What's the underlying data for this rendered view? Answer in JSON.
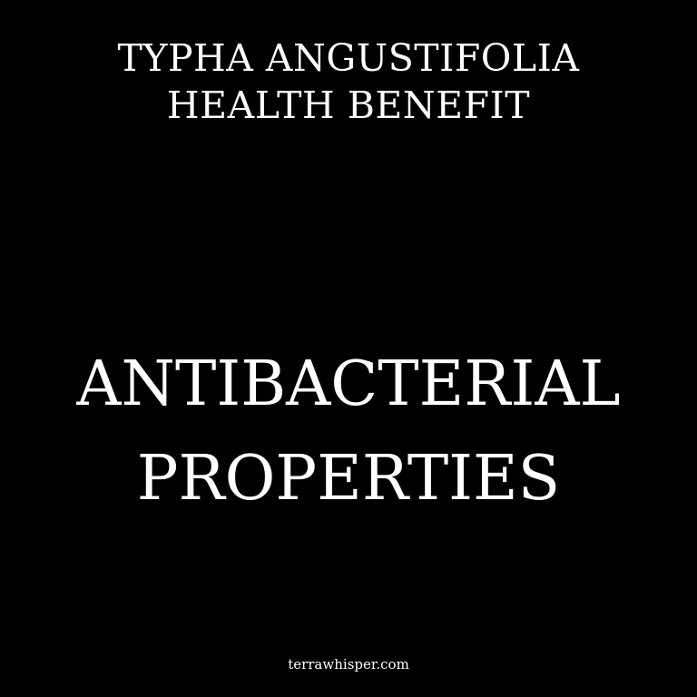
{
  "header": {
    "line1": "TYPHA ANGUSTIFOLIA",
    "line2": "HEALTH BENEFIT"
  },
  "main": {
    "line1": "ANTIBACTERIAL",
    "line2": "PROPERTIES"
  },
  "footer": {
    "site": "terrawhisper.com"
  },
  "colors": {
    "background": "#000000",
    "text": "#ffffff"
  }
}
